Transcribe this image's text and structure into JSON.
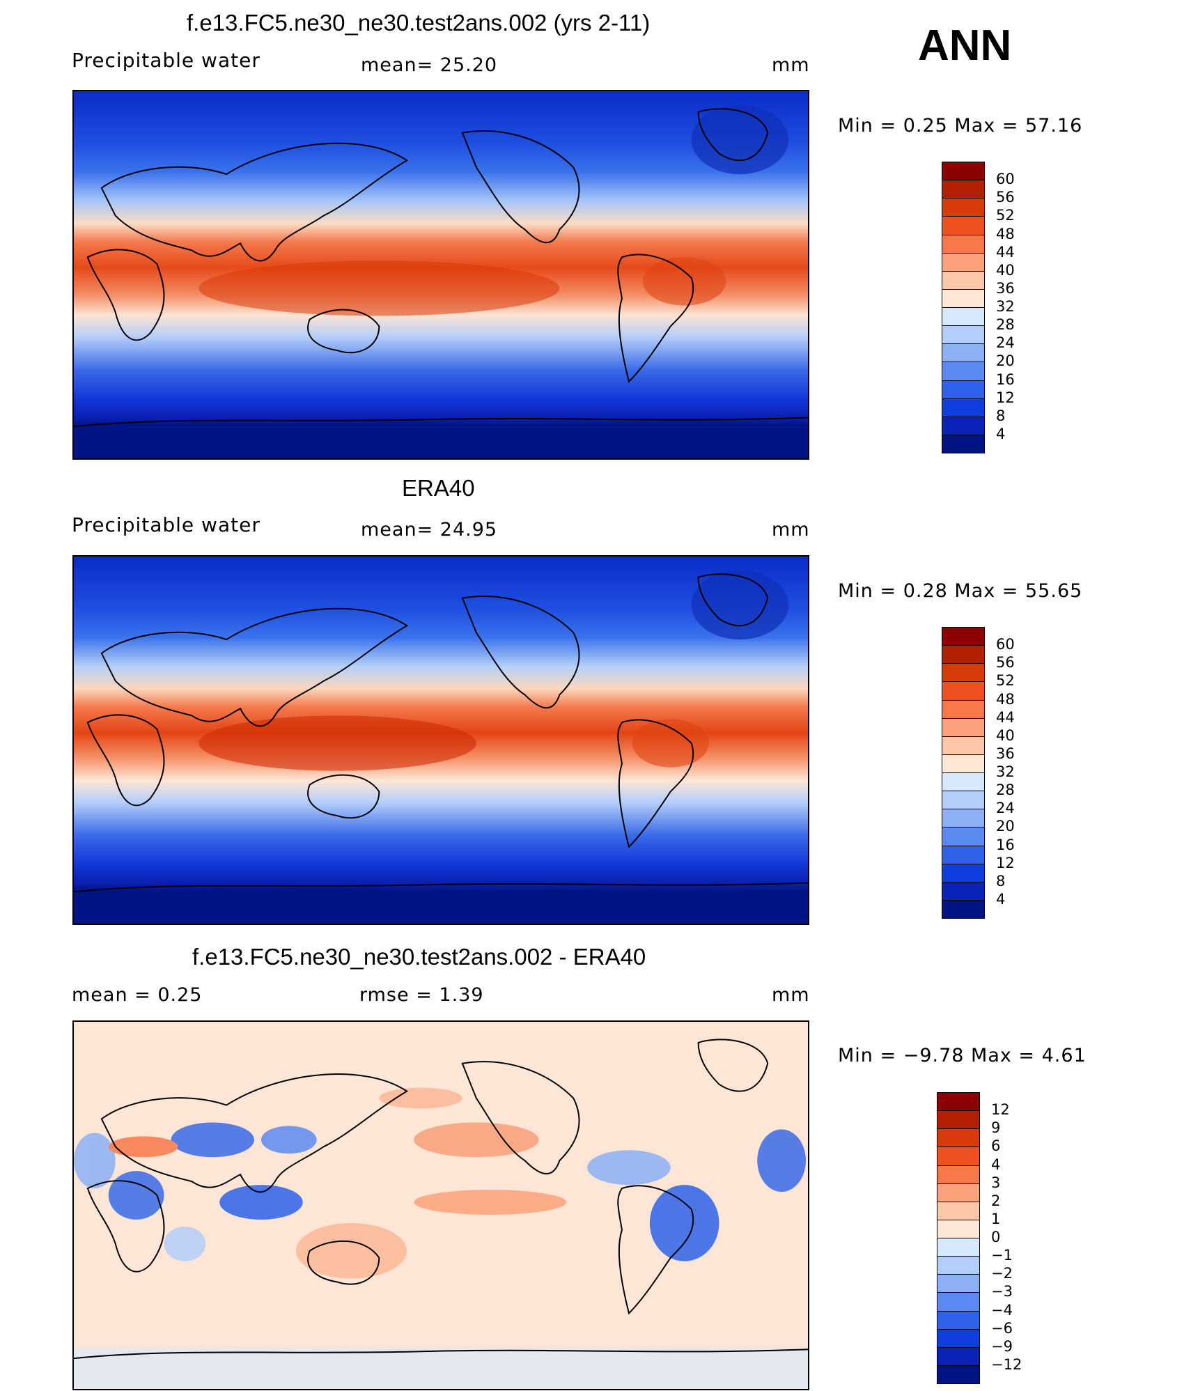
{
  "season": "ANN",
  "panels": [
    {
      "id": "model",
      "title": "f.e13.FC5.ne30_ne30.test2ans.002 (yrs 2-11)",
      "left_label": "Precipitable  water",
      "center_label": "mean=   25.20",
      "units": "mm",
      "minmax": "Min  =     0.25  Max  =    57.16",
      "colorbar": {
        "ticks": [
          "60",
          "56",
          "52",
          "48",
          "44",
          "40",
          "36",
          "32",
          "28",
          "24",
          "20",
          "16",
          "12",
          "8",
          "4"
        ],
        "colors": [
          "#8b0000",
          "#b22000",
          "#d83a08",
          "#ee5020",
          "#f8784a",
          "#fca27a",
          "#fcc8a8",
          "#fde8d6",
          "#d6e8fc",
          "#b4cefa",
          "#8cb0f6",
          "#5a8af2",
          "#2e62ea",
          "#0f3ee0",
          "#0a22b6",
          "#001486"
        ]
      }
    },
    {
      "id": "obs",
      "title": "ERA40",
      "left_label": "Precipitable  water",
      "center_label": "mean=   24.95",
      "units": "mm",
      "minmax": "Min  =     0.28  Max  =    55.65",
      "colorbar": {
        "ticks": [
          "60",
          "56",
          "52",
          "48",
          "44",
          "40",
          "36",
          "32",
          "28",
          "24",
          "20",
          "16",
          "12",
          "8",
          "4"
        ],
        "colors": [
          "#8b0000",
          "#b22000",
          "#d83a08",
          "#ee5020",
          "#f8784a",
          "#fca27a",
          "#fcc8a8",
          "#fde8d6",
          "#d6e8fc",
          "#b4cefa",
          "#8cb0f6",
          "#5a8af2",
          "#2e62ea",
          "#0f3ee0",
          "#0a22b6",
          "#001486"
        ]
      }
    },
    {
      "id": "diff",
      "title": "f.e13.FC5.ne30_ne30.test2ans.002 - ERA40",
      "left_label": "mean  =      0.25",
      "center_label": "rmse  =      1.39",
      "units": "mm",
      "minmax": "Min  =   −9.78  Max  =      4.61",
      "colorbar": {
        "ticks": [
          "12",
          "9",
          "6",
          "4",
          "3",
          "2",
          "1",
          "0",
          "−1",
          "−2",
          "−3",
          "−4",
          "−6",
          "−9",
          "−12"
        ],
        "colors": [
          "#8b0000",
          "#b22000",
          "#d83a08",
          "#ee5020",
          "#f8784a",
          "#fca27a",
          "#fcc8a8",
          "#fde8d6",
          "#d6e8fc",
          "#b4cefa",
          "#8cb0f6",
          "#5a8af2",
          "#2e62ea",
          "#0f3ee0",
          "#0a22b6",
          "#001486"
        ]
      }
    }
  ]
}
